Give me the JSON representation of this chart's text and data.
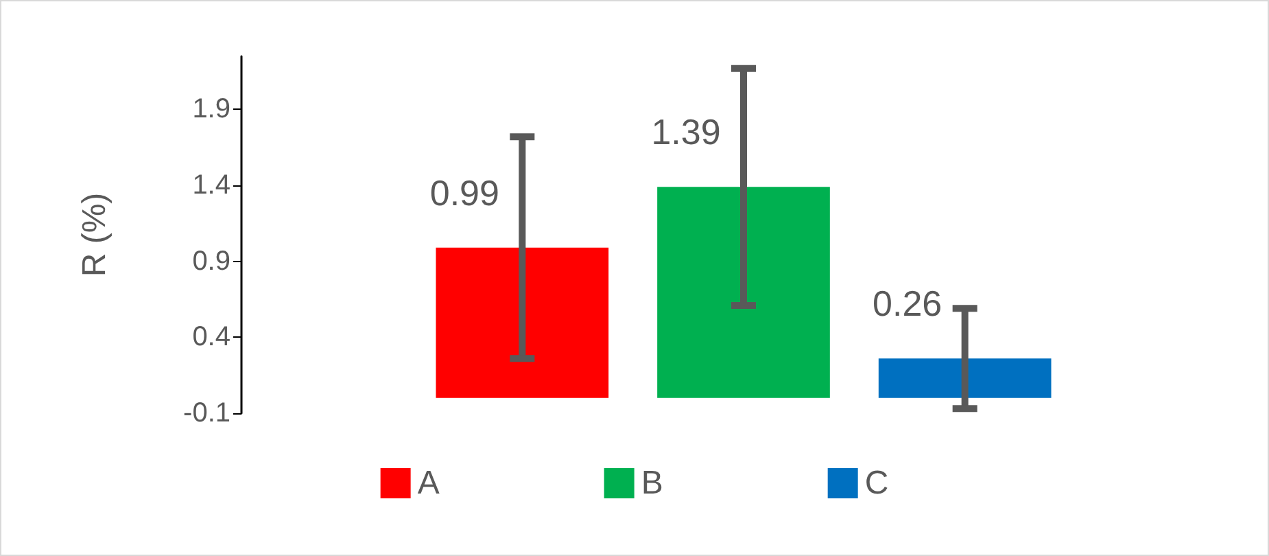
{
  "chart_data": {
    "type": "bar",
    "ylabel": "R (%)",
    "categories": [
      null,
      null,
      null
    ],
    "series": [
      {
        "name": "A",
        "color": "#ff0000",
        "values": [
          0.99,
          null,
          null
        ],
        "errors": [
          0.73,
          null,
          null
        ]
      },
      {
        "name": "B",
        "color": "#00b050",
        "values": [
          null,
          1.39,
          null
        ],
        "errors": [
          null,
          0.78,
          null
        ]
      },
      {
        "name": "C",
        "color": "#0070c0",
        "values": [
          null,
          null,
          0.26
        ],
        "errors": [
          null,
          null,
          0.33
        ]
      }
    ],
    "stacked": true,
    "ylim": [
      -0.1,
      2.25
    ],
    "yticks": [
      -0.1,
      0.4,
      0.9,
      1.4,
      1.9
    ],
    "data_labels": true,
    "legend": "bottom",
    "grid": false,
    "tick_labels": "y"
  }
}
